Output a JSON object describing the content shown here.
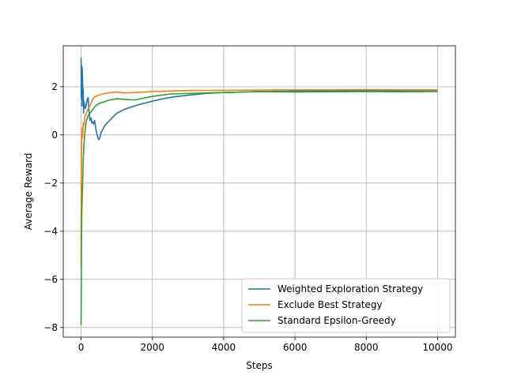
{
  "chart_data": {
    "type": "line",
    "title": "",
    "xlabel": "Steps",
    "ylabel": "Average Reward",
    "xlim": [
      -500,
      10500
    ],
    "ylim": [
      -8.4,
      3.7
    ],
    "xticks": [
      0,
      2000,
      4000,
      6000,
      8000,
      10000
    ],
    "yticks": [
      -8,
      -6,
      -4,
      -2,
      0,
      2
    ],
    "grid": true,
    "legend_position": "lower-right",
    "series": [
      {
        "name": "Weighted Exploration Strategy",
        "color": "#1f77b4",
        "x": [
          0,
          5,
          10,
          15,
          20,
          25,
          30,
          40,
          50,
          60,
          70,
          80,
          100,
          120,
          150,
          180,
          200,
          220,
          250,
          280,
          300,
          320,
          350,
          380,
          400,
          420,
          450,
          480,
          500,
          530,
          560,
          600,
          650,
          700,
          800,
          900,
          1000,
          1200,
          1400,
          1600,
          1800,
          2000,
          2300,
          2600,
          3000,
          3500,
          4000,
          4500,
          5000,
          6000,
          7000,
          8000,
          9000,
          10000
        ],
        "y": [
          3.2,
          1.5,
          2.9,
          1.8,
          2.6,
          1.2,
          2.8,
          2.4,
          1.7,
          1.9,
          0.9,
          1.4,
          1.2,
          1.1,
          1.3,
          1.5,
          1.55,
          1.0,
          0.6,
          0.7,
          0.5,
          0.55,
          0.45,
          0.6,
          0.4,
          0.2,
          0.0,
          -0.15,
          -0.2,
          -0.1,
          0.1,
          0.2,
          0.35,
          0.45,
          0.6,
          0.75,
          0.9,
          1.05,
          1.15,
          1.25,
          1.32,
          1.4,
          1.5,
          1.58,
          1.65,
          1.72,
          1.76,
          1.78,
          1.8,
          1.82,
          1.83,
          1.84,
          1.84,
          1.85
        ]
      },
      {
        "name": "Exclude Best Strategy",
        "color": "#ff7f0e",
        "x": [
          0,
          5,
          10,
          15,
          20,
          30,
          40,
          50,
          60,
          80,
          100,
          120,
          150,
          200,
          250,
          300,
          350,
          400,
          500,
          600,
          800,
          1000,
          1200,
          1500,
          2000,
          2500,
          3000,
          4000,
          5000,
          6000,
          7000,
          8000,
          9000,
          10000
        ],
        "y": [
          -5.5,
          -2.0,
          -1.3,
          -0.4,
          0.1,
          0.3,
          -0.1,
          0.2,
          0.5,
          0.4,
          0.7,
          0.8,
          0.9,
          1.1,
          1.2,
          1.4,
          1.55,
          1.6,
          1.65,
          1.7,
          1.75,
          1.78,
          1.74,
          1.76,
          1.8,
          1.82,
          1.84,
          1.85,
          1.86,
          1.87,
          1.87,
          1.88,
          1.87,
          1.87
        ]
      },
      {
        "name": "Standard Epsilon-Greedy",
        "color": "#2ca02c",
        "x": [
          0,
          5,
          10,
          15,
          20,
          30,
          40,
          50,
          60,
          70,
          80,
          100,
          120,
          150,
          200,
          250,
          300,
          350,
          400,
          500,
          600,
          700,
          800,
          1000,
          1200,
          1500,
          2000,
          2500,
          3000,
          4000,
          5000,
          6000,
          7000,
          8000,
          9000,
          10000
        ],
        "y": [
          -7.9,
          -6.5,
          -4.8,
          -3.7,
          -3.2,
          -2.6,
          -2.1,
          -1.7,
          -1.0,
          -0.8,
          -0.4,
          0.0,
          0.3,
          0.6,
          0.8,
          0.9,
          1.0,
          1.1,
          1.2,
          1.3,
          1.35,
          1.4,
          1.45,
          1.5,
          1.48,
          1.45,
          1.6,
          1.7,
          1.72,
          1.76,
          1.8,
          1.78,
          1.79,
          1.8,
          1.79,
          1.8
        ]
      }
    ]
  }
}
